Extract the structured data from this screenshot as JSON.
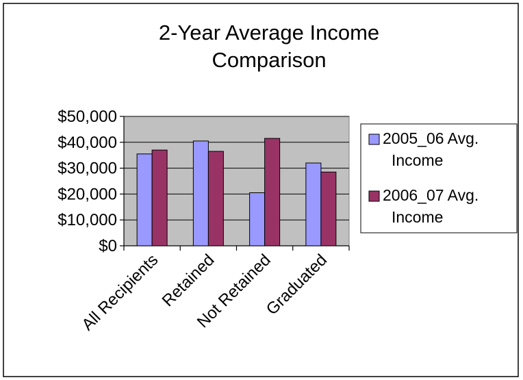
{
  "chart_data": {
    "type": "bar",
    "title_lines": [
      "2-Year Average Income",
      "Comparison"
    ],
    "categories": [
      "All Recipients",
      "Retained",
      "Not Retained",
      "Graduated"
    ],
    "series": [
      {
        "name_lines": [
          "2005_06 Avg.",
          "Income"
        ],
        "values": [
          35500,
          40500,
          20500,
          32000
        ],
        "color": "#9999ff"
      },
      {
        "name_lines": [
          "2006_07 Avg.",
          "Income"
        ],
        "values": [
          37000,
          36500,
          41500,
          28500
        ],
        "color": "#993366"
      }
    ],
    "ylim": [
      0,
      50000
    ],
    "yticks": [
      0,
      10000,
      20000,
      30000,
      40000,
      50000
    ],
    "ytick_labels": [
      "$0",
      "$10,000",
      "$20,000",
      "$30,000",
      "$40,000",
      "$50,000"
    ],
    "xlabel": "",
    "ylabel": "",
    "grid": true,
    "legend_position": "right",
    "plot_background": "#c0c0c0"
  }
}
